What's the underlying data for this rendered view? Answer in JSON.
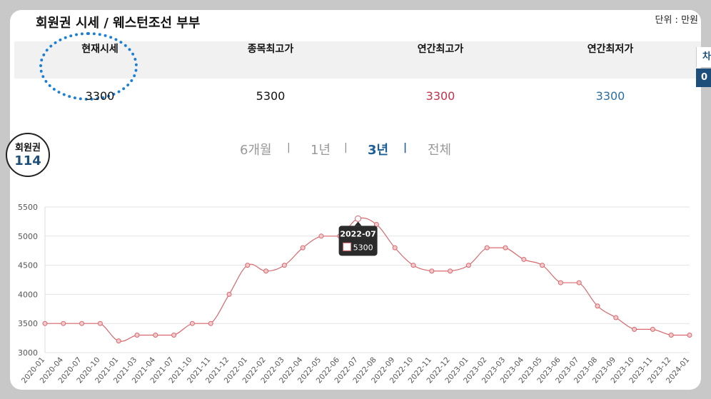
{
  "header": {
    "title": "회원권 시세 / 웨스턴조선 부부",
    "unit": "단위 : 만원"
  },
  "stats": [
    {
      "label": "현재시세",
      "value": "3300",
      "color": "#111111"
    },
    {
      "label": "종목최고가",
      "value": "5300",
      "color": "#111111"
    },
    {
      "label": "연간최고가",
      "value": "3300",
      "color": "#c2334a"
    },
    {
      "label": "연간최저가",
      "value": "3300",
      "color": "#2a6fa8"
    }
  ],
  "badge": {
    "top": "회원권",
    "number": "114"
  },
  "tabs": [
    {
      "label": "6개월",
      "active": false
    },
    {
      "label": "1년",
      "active": false
    },
    {
      "label": "3년",
      "active": true
    },
    {
      "label": "전체",
      "active": false
    }
  ],
  "side_tab": {
    "top": "차",
    "bottom": "0"
  },
  "chart_data": {
    "type": "line",
    "x": [
      "2020-01",
      "2020-04",
      "2020-07",
      "2020-10",
      "2021-01",
      "2021-03",
      "2021-04",
      "2021-07",
      "2021-10",
      "2021-11",
      "2021-12",
      "2022-01",
      "2022-02",
      "2022-03",
      "2022-04",
      "2022-05",
      "2022-06",
      "2022-07",
      "2022-08",
      "2022-09",
      "2022-10",
      "2022-11",
      "2022-12",
      "2023-01",
      "2023-02",
      "2023-03",
      "2023-04",
      "2023-05",
      "2023-06",
      "2023-07",
      "2023-08",
      "2023-09",
      "2023-10",
      "2023-11",
      "2023-12",
      "2024-01"
    ],
    "series": [
      {
        "values": [
          3500,
          3500,
          3500,
          3500,
          3200,
          3300,
          3300,
          3300,
          3500,
          3500,
          4000,
          4500,
          4400,
          4500,
          4800,
          5000,
          5000,
          5300,
          5200,
          4800,
          4500,
          4400,
          4400,
          4500,
          4800,
          4800,
          4600,
          4500,
          4200,
          4200,
          3800,
          3600,
          3400,
          3400,
          3300,
          3300
        ]
      }
    ],
    "y_ticks": [
      3000,
      3500,
      4000,
      4500,
      5000,
      5500
    ],
    "ylim": [
      3000,
      5500
    ],
    "grid": true,
    "line_color": "#d9686e",
    "tooltip": {
      "x": "2022-07",
      "value": "5300"
    }
  }
}
